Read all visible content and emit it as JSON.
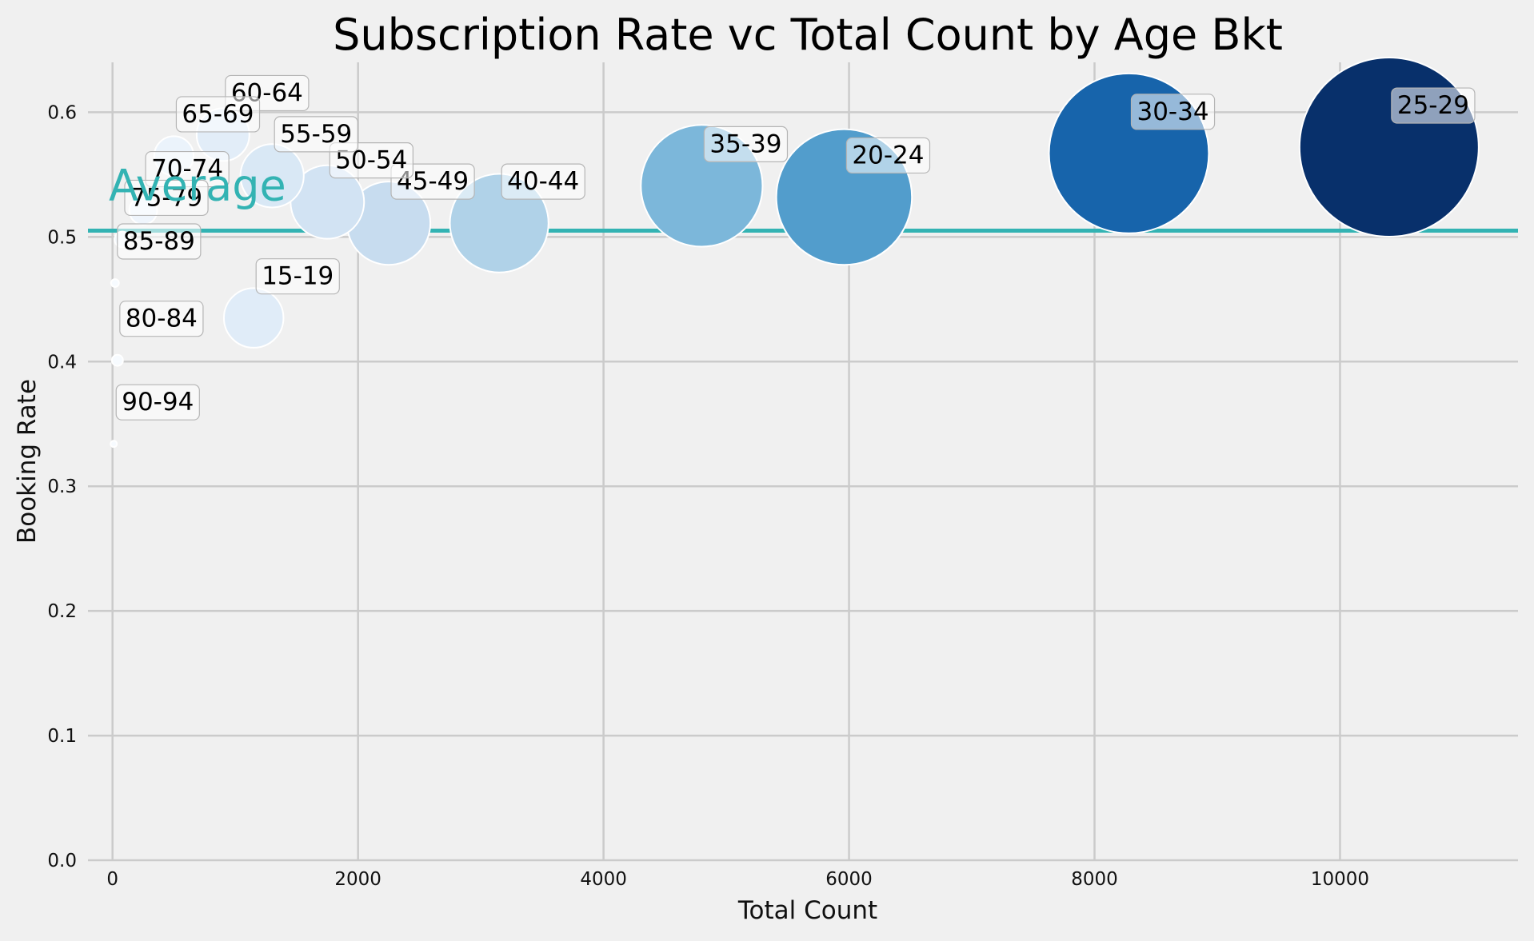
{
  "chart_data": {
    "type": "scatter",
    "title": "Subscription Rate vc Total Count by Age Bkt",
    "xlabel": "Total Count",
    "ylabel": "Booking Rate",
    "xlim": [
      -200,
      11450
    ],
    "ylim": [
      0,
      0.64
    ],
    "xticks": [
      "0",
      "2000",
      "4000",
      "6000",
      "8000",
      "10000"
    ],
    "yticks": [
      "0.0",
      "0.1",
      "0.2",
      "0.3",
      "0.4",
      "0.5",
      "0.6"
    ],
    "xtick_values": [
      0,
      2000,
      4000,
      6000,
      8000,
      10000
    ],
    "ytick_values": [
      0,
      0.1,
      0.2,
      0.3,
      0.4,
      0.5,
      0.6
    ],
    "grid": true,
    "colormap": "Blues",
    "average": {
      "label": "Average",
      "value": 0.505,
      "color": "#33b3b3"
    },
    "points": [
      {
        "label": "25-29",
        "x": 10400,
        "y": 0.572,
        "color": "#08306b"
      },
      {
        "label": "30-34",
        "x": 8280,
        "y": 0.567,
        "color": "#1764ab"
      },
      {
        "label": "20-24",
        "x": 5960,
        "y": 0.532,
        "color": "#529dcc"
      },
      {
        "label": "35-39",
        "x": 4800,
        "y": 0.541,
        "color": "#7cb7da"
      },
      {
        "label": "40-44",
        "x": 3150,
        "y": 0.511,
        "color": "#b0d2e8"
      },
      {
        "label": "45-49",
        "x": 2250,
        "y": 0.511,
        "color": "#c7dcef"
      },
      {
        "label": "50-54",
        "x": 1750,
        "y": 0.528,
        "color": "#d2e3f3"
      },
      {
        "label": "55-59",
        "x": 1300,
        "y": 0.549,
        "color": "#d9e8f5"
      },
      {
        "label": "15-19",
        "x": 1150,
        "y": 0.435,
        "color": "#e0ecf8"
      },
      {
        "label": "60-64",
        "x": 900,
        "y": 0.582,
        "color": "#e2edf8"
      },
      {
        "label": "65-69",
        "x": 500,
        "y": 0.565,
        "color": "#ebf3fb"
      },
      {
        "label": "70-74",
        "x": 250,
        "y": 0.521,
        "color": "#eff5fc"
      },
      {
        "label": "75-79",
        "x": 80,
        "y": 0.498,
        "color": "#f3f8fd"
      },
      {
        "label": "85-89",
        "x": 20,
        "y": 0.463,
        "color": "#f7fbff"
      },
      {
        "label": "80-84",
        "x": 40,
        "y": 0.401,
        "color": "#f7fbff"
      },
      {
        "label": "90-94",
        "x": 10,
        "y": 0.334,
        "color": "#f7fbff"
      }
    ]
  }
}
